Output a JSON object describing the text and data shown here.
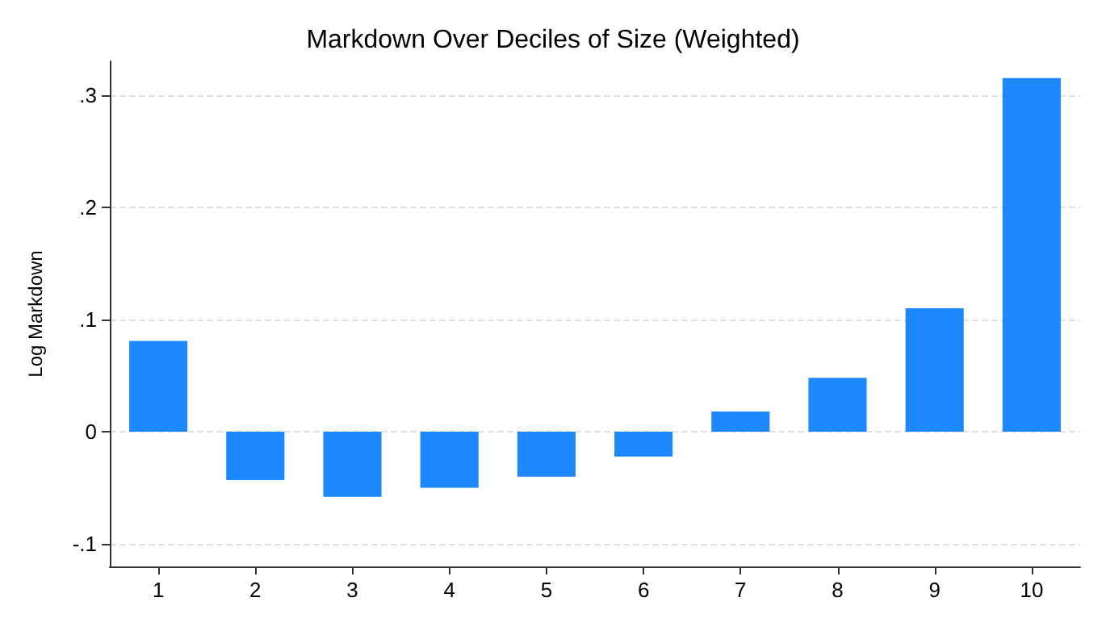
{
  "chart_data": {
    "type": "bar",
    "title": "Markdown Over Deciles of Size (Weighted)",
    "ylabel": "Log Markdown",
    "categories": [
      "1",
      "2",
      "3",
      "4",
      "5",
      "6",
      "7",
      "8",
      "9",
      "10"
    ],
    "values": [
      0.081,
      -0.043,
      -0.058,
      -0.05,
      -0.04,
      -0.022,
      0.018,
      0.048,
      0.11,
      0.315
    ],
    "color": "#1e88ff",
    "ylim": [
      -0.12,
      0.33
    ],
    "yticks": [
      {
        "value": -0.1,
        "label": "-.1"
      },
      0,
      {
        "value": 0.1,
        "label": ".1"
      },
      {
        "value": 0.2,
        "label": ".2"
      },
      {
        "value": 0.3,
        "label": ".3"
      }
    ],
    "grid": "y"
  }
}
